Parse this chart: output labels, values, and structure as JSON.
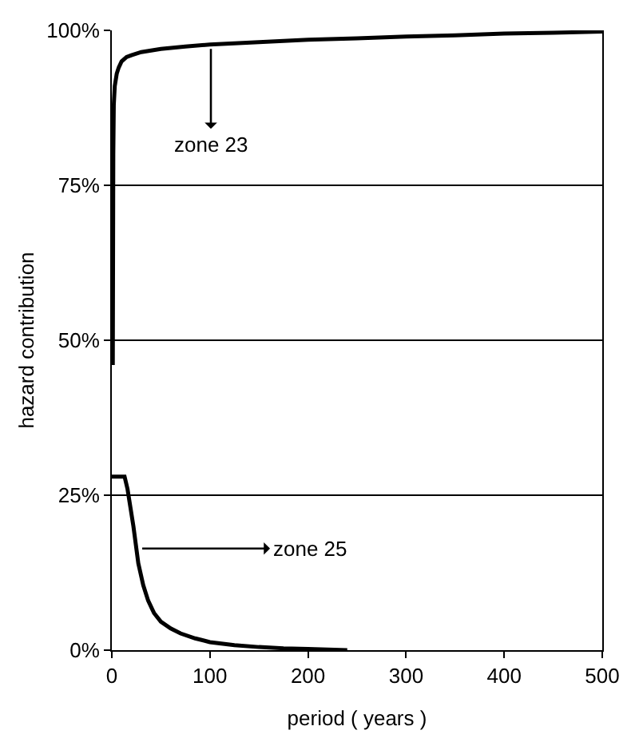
{
  "chart_data": {
    "type": "line",
    "xlabel": "period ( years )",
    "ylabel": "hazard contribution",
    "series": [
      {
        "color": "#000000",
        "x": [
          1,
          1.5,
          2,
          3,
          5,
          7,
          10,
          15,
          20,
          30,
          50,
          75,
          100,
          150,
          200,
          250,
          300,
          350,
          400,
          450,
          500
        ],
        "values": [
          46,
          80,
          88,
          91,
          93,
          94,
          95,
          95.7,
          96,
          96.5,
          97,
          97.4,
          97.7,
          98.1,
          98.5,
          98.7,
          99,
          99.2,
          99.5,
          99.6,
          99.8
        ]
      },
      {
        "color": "#000000",
        "x": [
          0,
          5,
          10,
          13,
          16,
          19,
          22,
          27,
          32,
          37,
          43,
          50,
          60,
          70,
          85,
          100,
          125,
          150,
          175,
          200,
          240
        ],
        "values": [
          28,
          28,
          28,
          28,
          26,
          23,
          20,
          14,
          10.5,
          8,
          6,
          4.6,
          3.5,
          2.7,
          1.9,
          1.3,
          0.8,
          0.5,
          0.3,
          0.2,
          0
        ]
      }
    ],
    "xlim": [
      0,
      500
    ],
    "xticks": [
      0,
      100,
      200,
      300,
      400,
      500
    ],
    "ylim": [
      0,
      100
    ],
    "yticks": [
      {
        "value": 0,
        "label": "0%"
      },
      {
        "value": 25,
        "label": "25%"
      },
      {
        "value": 50,
        "label": "50%"
      },
      {
        "value": 75,
        "label": "75%"
      },
      {
        "value": 100,
        "label": "100%"
      }
    ],
    "grid": "y",
    "legend": false,
    "marker": "none",
    "line_style": "solid",
    "annotations": [
      {
        "text": "zone 23",
        "x": 101,
        "y": 97
      },
      {
        "text": "zone 25",
        "x": 31,
        "y": 16.4
      }
    ]
  }
}
